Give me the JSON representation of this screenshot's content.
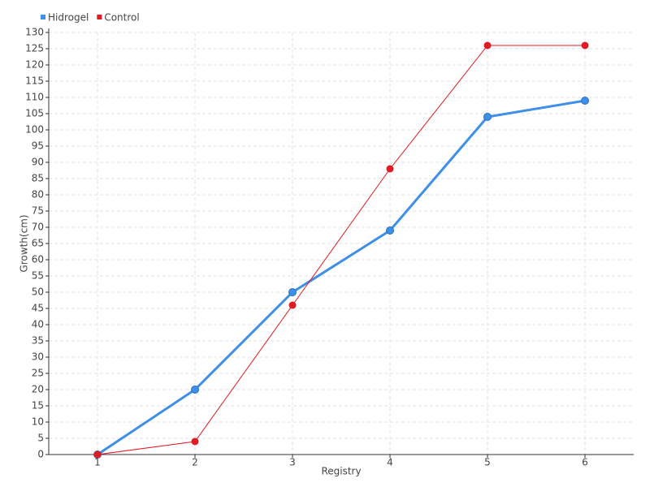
{
  "chart_data": {
    "type": "line",
    "x_label": "Registry",
    "y_label": "Growth(cm)",
    "categories": [
      "1",
      "2",
      "3",
      "4",
      "5",
      "6"
    ],
    "series": [
      {
        "name": "Hidrogel",
        "color": "#3d8fe8",
        "values": [
          0,
          20,
          50,
          69,
          104,
          109
        ]
      },
      {
        "name": "Control",
        "color": "#e01b24",
        "values": [
          0,
          4,
          46,
          88,
          126,
          126
        ]
      }
    ],
    "ylim": [
      0,
      130
    ],
    "yticks": [
      0,
      5,
      10,
      15,
      20,
      25,
      30,
      35,
      40,
      45,
      50,
      55,
      60,
      65,
      70,
      75,
      80,
      85,
      90,
      95,
      100,
      105,
      110,
      115,
      120,
      125,
      130
    ],
    "grid": true,
    "legend": "top-left"
  }
}
